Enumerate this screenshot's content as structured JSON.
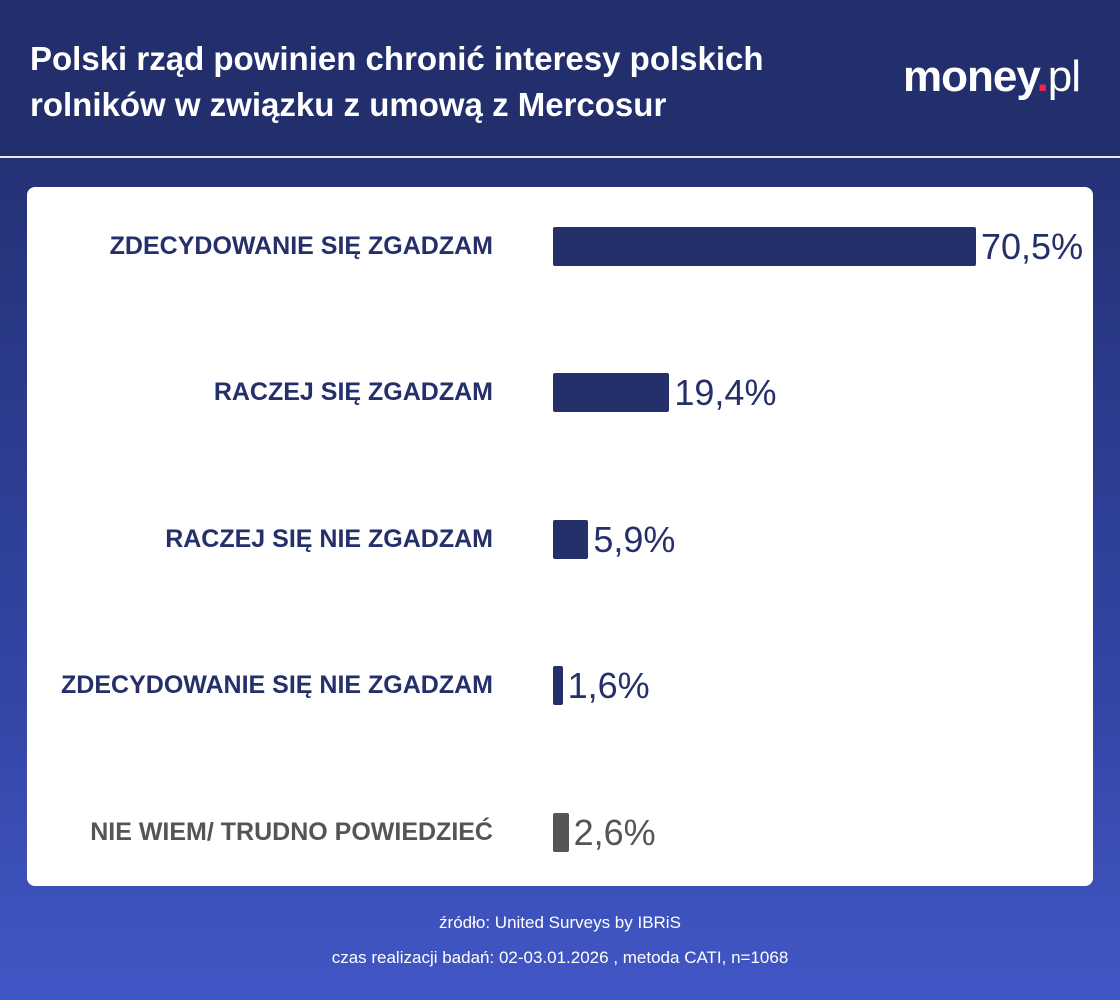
{
  "header": {
    "title": "Polski rząd powinien chronić interesy polskich rolników w związku z umową z Mercosur",
    "logo": {
      "main": "money",
      "dot": ".",
      "suffix": "pl"
    }
  },
  "colors": {
    "bar": "#25306b",
    "bar_other": "#555555",
    "label_other": "#555555"
  },
  "chart_data": {
    "type": "bar",
    "orientation": "horizontal",
    "categories": [
      "ZDECYDOWANIE SIĘ ZGADZAM",
      "RACZEJ SIĘ ZGADZAM",
      "RACZEJ SIĘ NIE ZGADZAM",
      "ZDECYDOWANIE SIĘ NIE ZGADZAM",
      "NIE WIEM/ TRUDNO POWIEDZIEĆ"
    ],
    "values": [
      70.5,
      19.4,
      5.9,
      1.6,
      2.6
    ],
    "value_labels": [
      "70,5%",
      "19,4%",
      "5,9%",
      "1,6%",
      "2,6%"
    ],
    "unit": "%",
    "grid": false
  },
  "footer": {
    "source": "źródło: United Surveys by IBRiS",
    "method": "czas realizacji badań: 02-03.01.2026 , metoda CATI, n=1068"
  }
}
